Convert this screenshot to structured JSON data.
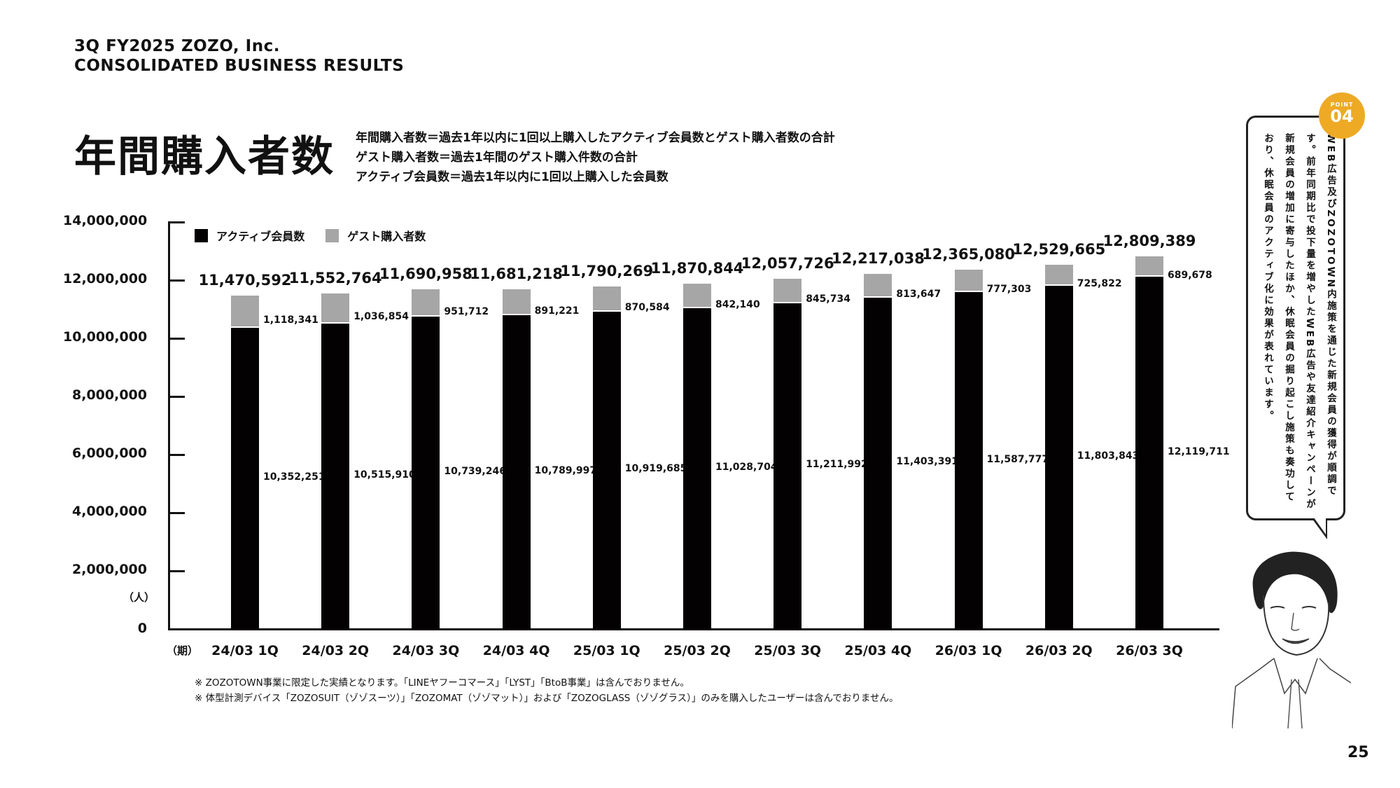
{
  "header": {
    "line1": "3Q FY2025 ZOZO, Inc.",
    "line2": "CONSOLIDATED BUSINESS RESULTS"
  },
  "page_title": "年間購入者数",
  "definitions": [
    "年間購入者数＝過去1年以内に1回以上購入したアクティブ会員数とゲスト購入者数の合計",
    "ゲスト購入者数＝過去1年間のゲスト購入件数の合計",
    "アクティブ会員数＝過去1年以内に1回以上購入した会員数"
  ],
  "legend": {
    "active_label": "アクティブ会員数",
    "guest_label": "ゲスト購入者数"
  },
  "axis": {
    "y_unit": "（人）",
    "x_unit": "（期）",
    "y_ticks": [
      "14,000,000",
      "12,000,000",
      "10,000,000",
      "8,000,000",
      "6,000,000",
      "4,000,000",
      "2,000,000",
      "0"
    ]
  },
  "colors": {
    "active": "#040102",
    "guest": "#a6a6a6",
    "point_badge": "#eeaa25"
  },
  "bars": [
    {
      "period": "24/03 1Q",
      "total": "11,470,592",
      "guest": "1,118,341",
      "active": "10,352,251"
    },
    {
      "period": "24/03 2Q",
      "total": "11,552,764",
      "guest": "1,036,854",
      "active": "10,515,910"
    },
    {
      "period": "24/03 3Q",
      "total": "11,690,958",
      "guest": "951,712",
      "active": "10,739,246"
    },
    {
      "period": "24/03 4Q",
      "total": "11,681,218",
      "guest": "891,221",
      "active": "10,789,997"
    },
    {
      "period": "25/03 1Q",
      "total": "11,790,269",
      "guest": "870,584",
      "active": "10,919,685"
    },
    {
      "period": "25/03 2Q",
      "total": "11,870,844",
      "guest": "842,140",
      "active": "11,028,704"
    },
    {
      "period": "25/03 3Q",
      "total": "12,057,726",
      "guest": "845,734",
      "active": "11,211,992"
    },
    {
      "period": "25/03 4Q",
      "total": "12,217,038",
      "guest": "813,647",
      "active": "11,403,391"
    },
    {
      "period": "26/03 1Q",
      "total": "12,365,080",
      "guest": "777,303",
      "active": "11,587,777"
    },
    {
      "period": "26/03 2Q",
      "total": "12,529,665",
      "guest": "725,822",
      "active": "11,803,843"
    },
    {
      "period": "26/03 3Q",
      "total": "12,809,389",
      "guest": "689,678",
      "active": "12,119,711"
    }
  ],
  "chart_data": {
    "type": "bar",
    "stacked": true,
    "title": "年間購入者数",
    "xlabel": "（期）",
    "ylabel": "（人）",
    "ylim": [
      0,
      14000000
    ],
    "yticks": [
      0,
      2000000,
      4000000,
      6000000,
      8000000,
      10000000,
      12000000,
      14000000
    ],
    "grid": false,
    "legend_position": "top-left",
    "categories": [
      "24/03 1Q",
      "24/03 2Q",
      "24/03 3Q",
      "24/03 4Q",
      "25/03 1Q",
      "25/03 2Q",
      "25/03 3Q",
      "25/03 4Q",
      "26/03 1Q",
      "26/03 2Q",
      "26/03 3Q"
    ],
    "series": [
      {
        "name": "アクティブ会員数",
        "color": "#040102",
        "values": [
          10352251,
          10515910,
          10739246,
          10789997,
          10919685,
          11028704,
          11211992,
          11403391,
          11587777,
          11803843,
          12119711
        ]
      },
      {
        "name": "ゲスト購入者数",
        "color": "#a6a6a6",
        "values": [
          1118341,
          1036854,
          951712,
          891221,
          870584,
          842140,
          845734,
          813647,
          777303,
          725822,
          689678
        ]
      }
    ],
    "totals": [
      11470592,
      11552764,
      11690958,
      11681218,
      11790269,
      11870844,
      12057726,
      12217038,
      12365080,
      12529665,
      12809389
    ]
  },
  "footnotes": [
    "※ ZOZOTOWN事業に限定した実績となります。「LINEヤフーコマース」「LYST」「BtoB事業」は含んでおりません。",
    "※ 体型計測デバイス「ZOZOSUIT（ゾゾスーツ）」「ZOZOMAT（ゾゾマット）」および「ZOZOGLASS（ゾゾグラス）」のみを購入したユーザーは含んでおりません。"
  ],
  "point": {
    "label": "POINT",
    "number": "04",
    "text": "WEB広告及びZOZOTOWN内施策を通じた新規会員の獲得が順調です。前年同期比で投下量を増やしたWEB広告や友達紹介キャンペーンが新規会員の増加に寄与したほか、休眠会員の掘り起こし施策も奏功しており、休眠会員のアクティブ化に効果が表れています。"
  },
  "page_number": "25"
}
